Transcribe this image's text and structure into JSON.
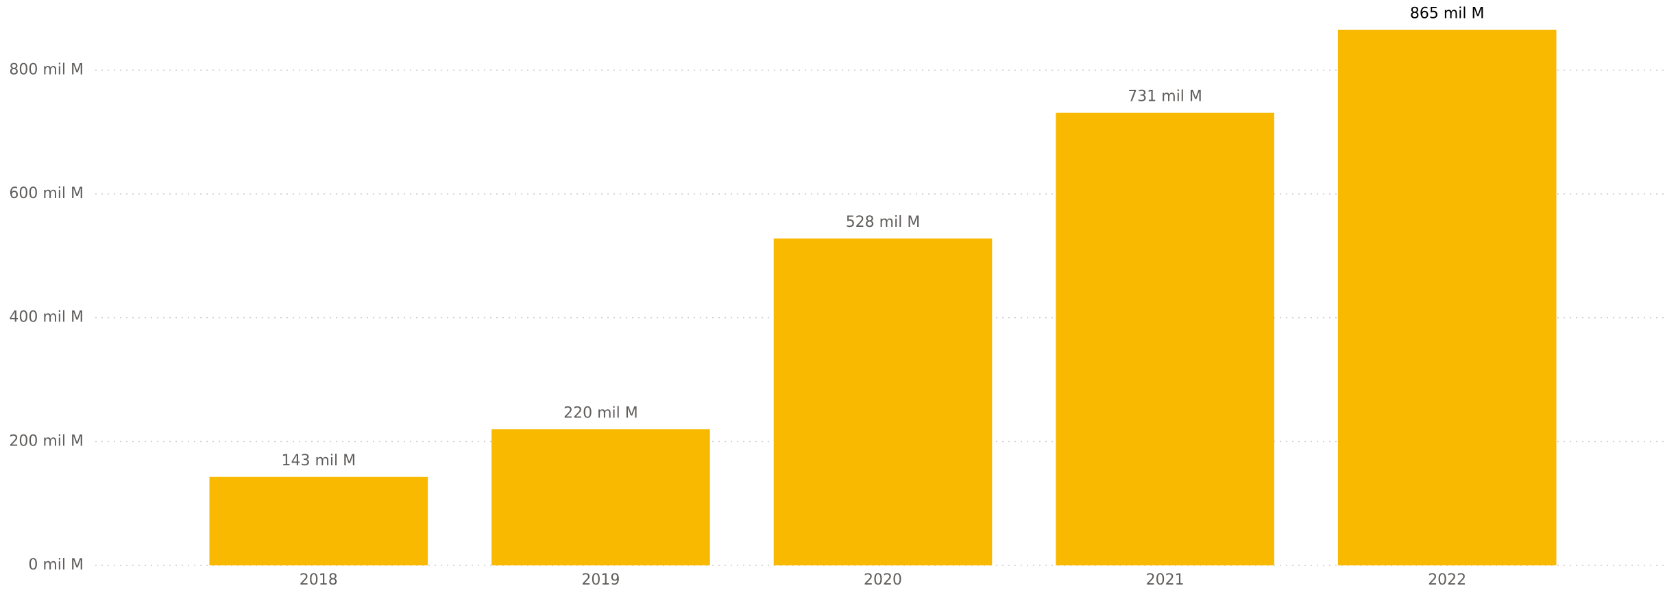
{
  "chart_data": {
    "type": "bar",
    "categories": [
      "2018",
      "2019",
      "2020",
      "2021",
      "2022"
    ],
    "values": [
      143,
      220,
      528,
      731,
      865
    ],
    "value_labels": [
      "143 mil M",
      "220 mil M",
      "528 mil M",
      "731 mil M",
      "865 mil M"
    ],
    "color": "#f9b900",
    "ylim": [
      0,
      900
    ],
    "yticks": [
      {
        "value": 0,
        "label": "0 mil M"
      },
      {
        "value": 200,
        "label": "200 mil M"
      },
      {
        "value": 400,
        "label": "400 mil M"
      },
      {
        "value": 600,
        "label": "600 mil M"
      },
      {
        "value": 800,
        "label": "800 mil M"
      }
    ],
    "grid": true
  }
}
